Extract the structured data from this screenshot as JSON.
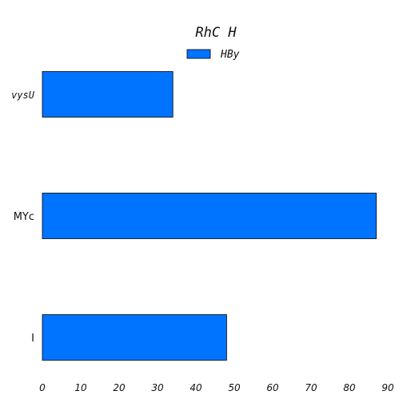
{
  "chart_data": {
    "type": "bar",
    "orientation": "horizontal",
    "title": "RhC H",
    "categories": [
      "vysU",
      "MYc",
      "I"
    ],
    "series": [
      {
        "name": "HBy",
        "values": [
          34,
          87,
          48
        ],
        "color": "#0073ff"
      }
    ],
    "xlim": [
      0,
      90
    ],
    "xticks": [
      0,
      10,
      20,
      30,
      40,
      50,
      60,
      70,
      80,
      90
    ],
    "xlabel": "",
    "ylabel": "",
    "grid": false,
    "legend_position": "top-center"
  }
}
